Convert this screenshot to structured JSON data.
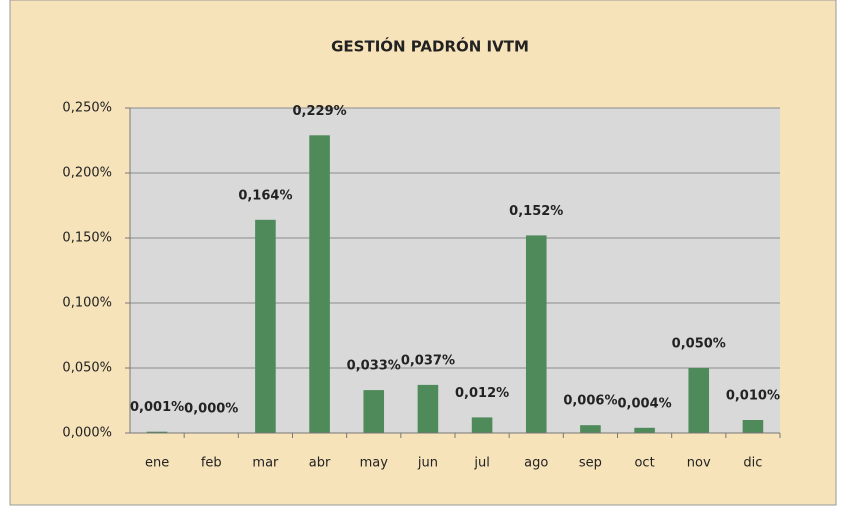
{
  "chart_data": {
    "type": "bar",
    "title": "GESTIÓN PADRÓN IVTM",
    "categories": [
      "ene",
      "feb",
      "mar",
      "abr",
      "may",
      "jun",
      "jul",
      "ago",
      "sep",
      "oct",
      "nov",
      "dic"
    ],
    "values": [
      0.001,
      0.0,
      0.164,
      0.229,
      0.033,
      0.037,
      0.012,
      0.152,
      0.006,
      0.004,
      0.05,
      0.01
    ],
    "value_labels": [
      "0,001%",
      "0,000%",
      "0,164%",
      "0,229%",
      "0,033%",
      "0,037%",
      "0,012%",
      "0,152%",
      "0,006%",
      "0,004%",
      "0,050%",
      "0,010%"
    ],
    "color": "#4e8a5a",
    "ylim": [
      0,
      0.25
    ],
    "yticks": [
      {
        "value": 0,
        "label": "0,000%"
      },
      {
        "value": 0.05,
        "label": "0,050%"
      },
      {
        "value": 0.1,
        "label": "0,100%"
      },
      {
        "value": 0.15,
        "label": "0,150%"
      },
      {
        "value": 0.2,
        "label": "0,200%"
      },
      {
        "value": 0.25,
        "label": "0,250%"
      }
    ],
    "grid": true
  }
}
